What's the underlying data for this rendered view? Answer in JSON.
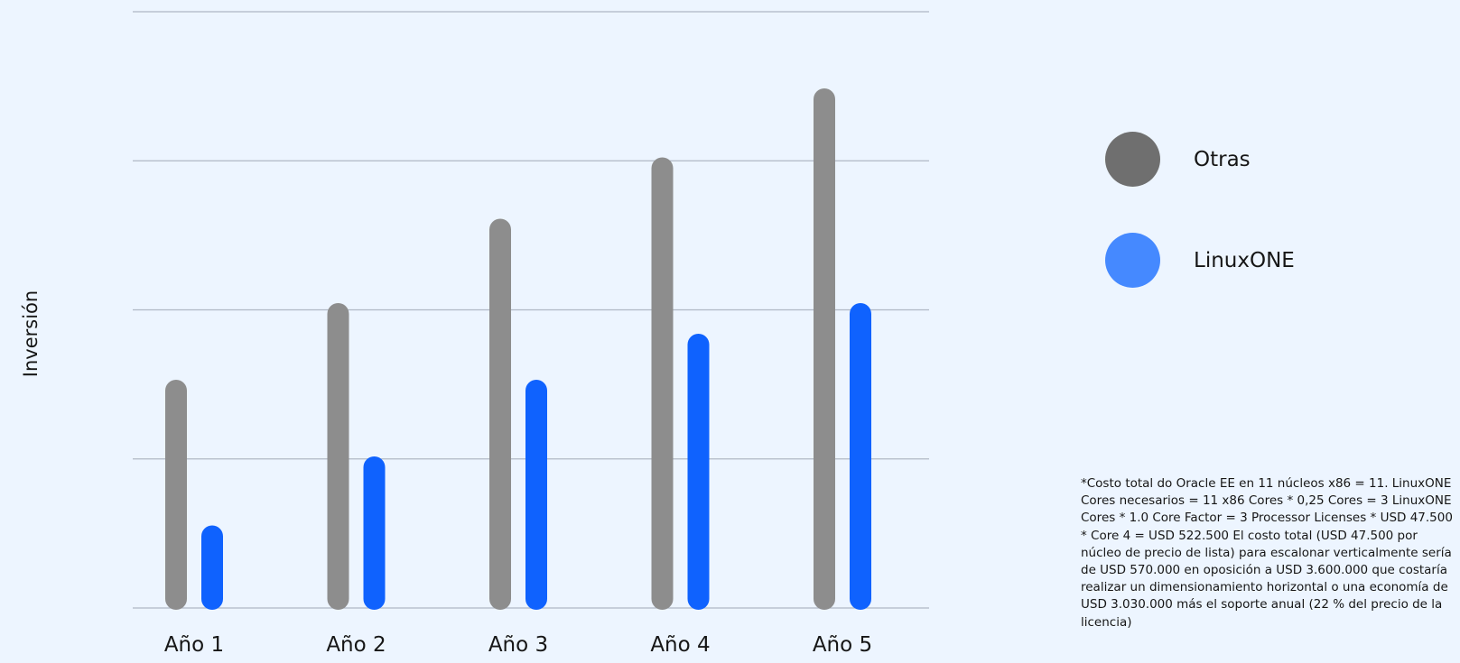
{
  "chart_data": {
    "type": "bar",
    "title": "",
    "xlabel": "",
    "ylabel": "Inversión",
    "categories": [
      "Año 1",
      "Año 2",
      "Año 3",
      "Año 4",
      "Año 5"
    ],
    "series": [
      {
        "name": "Otras",
        "color": "#8d8d8d",
        "values": [
          3.0,
          4.0,
          5.1,
          5.9,
          6.8
        ]
      },
      {
        "name": "LinuxONE",
        "color": "#0f62fe",
        "values": [
          1.1,
          2.0,
          3.0,
          3.6,
          4.0
        ]
      }
    ],
    "ylim": [
      0,
      7.8
    ],
    "yticks": [
      0,
      2,
      4,
      6,
      8
    ],
    "grid": true,
    "legend_position": "right"
  },
  "legend": {
    "items": [
      {
        "label": "Otras",
        "color": "#6f6f6f"
      },
      {
        "label": "LinuxONE",
        "color": "#4589ff"
      }
    ]
  },
  "footnote": "*Costo total do Oracle EE en 11 núcleos x86 = 11. LinuxONE Cores necesarios = 11 x86 Cores * 0,25 Cores = 3 LinuxONE Cores * 1.0 Core Factor = 3 Processor Licenses * USD 47.500 * Core 4 = USD 522.500 El costo total (USD 47.500 por núcleo de precio de lista) para escalonar verticalmente sería de USD 570.000 en oposición a USD 3.600.000 que costaría realizar un dimensionamiento horizontal o una economía de USD 3.030.000 más el soporte anual (22 % del precio de la licencia)"
}
